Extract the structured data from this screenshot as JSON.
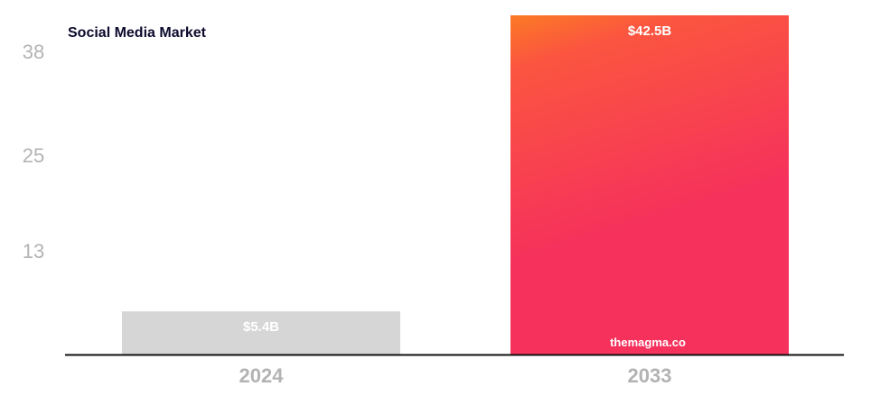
{
  "chart_data": {
    "type": "bar",
    "title": "Social Media Market",
    "categories": [
      "2024",
      "2033"
    ],
    "values": [
      5.4,
      42.5
    ],
    "data_labels": [
      "$5.4B",
      "$42.5B"
    ],
    "yticks": [
      13,
      25,
      38
    ],
    "ylim": [
      0,
      42.5
    ],
    "xlabel": "",
    "ylabel": "",
    "grid": false,
    "colors": {
      "bar_2024": "#d6d6d6",
      "bar_2033_top": "#fb7a24",
      "bar_2033_mid": "#fb5540",
      "bar_2033_bottom": "#f5315c"
    },
    "watermark": "themagma.co"
  }
}
